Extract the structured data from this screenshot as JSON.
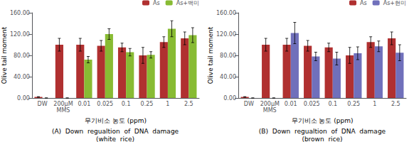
{
  "chart_data": [
    {
      "type": "bar",
      "title": "(A)  Down  regualtion  of  DNA  damage",
      "subtitle": "(white  rice)",
      "categories": [
        "DW",
        "200μM\nMMS",
        "0.01",
        "0.025",
        "0.1",
        "0.25",
        "1",
        "2.5"
      ],
      "xlabel": "무기비소 농도 (ppm)",
      "ylabel": "Olive tail moment",
      "ylim": [
        0,
        160
      ],
      "yticks": [
        {
          "value": 0,
          "label": "0.00"
        },
        {
          "value": 40,
          "label": "40.00"
        },
        {
          "value": 80,
          "label": "80.00"
        },
        {
          "value": 120,
          "label": "120.00"
        },
        {
          "value": 160,
          "label": "160.00"
        }
      ],
      "grid": false,
      "legend": "upper right",
      "series": [
        {
          "name": "As",
          "color": "#b03030",
          "values": [
            2,
            100,
            100,
            98,
            95,
            80,
            105,
            112
          ],
          "errors": [
            0.5,
            12,
            12,
            10,
            8,
            15,
            10,
            12
          ]
        },
        {
          "name": "As+백미",
          "color": "#88bb33",
          "values": [
            0,
            0,
            72,
            120,
            86,
            81,
            130,
            118
          ],
          "errors": [
            0,
            0,
            6,
            10,
            7,
            6,
            15,
            14
          ]
        }
      ]
    },
    {
      "type": "bar",
      "title": "(B)  Down  regualtion  of  DNA  damage",
      "subtitle": "(brown  rice)",
      "categories": [
        "DW",
        "200μM\nMMS",
        "0.01",
        "0.025",
        "0.1",
        "0.25",
        "1",
        "2.5"
      ],
      "xlabel": "무기비소 농도 (ppm)",
      "ylabel": "Olive tail moment",
      "ylim": [
        0,
        160
      ],
      "yticks": [
        {
          "value": 0,
          "label": "0.00"
        },
        {
          "value": 40,
          "label": "40.00"
        },
        {
          "value": 80,
          "label": "80.00"
        },
        {
          "value": 120,
          "label": "120.00"
        },
        {
          "value": 160,
          "label": "160.00"
        }
      ],
      "grid": false,
      "legend": "upper right",
      "series": [
        {
          "name": "As",
          "color": "#b03030",
          "values": [
            2,
            100,
            100,
            98,
            95,
            80,
            105,
            112
          ],
          "errors": [
            0.5,
            12,
            12,
            10,
            8,
            15,
            10,
            12
          ]
        },
        {
          "name": "As+현미",
          "color": "#7070bb",
          "values": [
            0,
            0,
            122,
            78,
            74,
            84,
            97,
            85
          ],
          "errors": [
            0,
            0,
            20,
            8,
            12,
            12,
            10,
            15
          ]
        }
      ]
    }
  ]
}
